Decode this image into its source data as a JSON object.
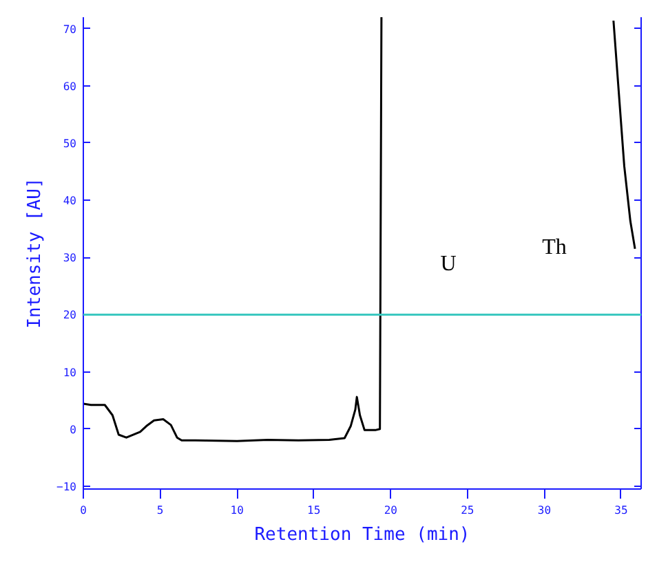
{
  "chart_data": {
    "type": "line",
    "xlabel": "Retention Time (min)",
    "ylabel": "Intensity [AU]",
    "x": [
      0,
      0.5,
      1.4,
      1.9,
      2.3,
      2.8,
      3.7,
      4.1,
      4.6,
      5.2,
      5.7,
      6.1,
      6.4,
      7.3,
      10,
      12,
      14,
      16,
      17.0,
      17.4,
      17.7,
      17.8,
      18.0,
      18.3,
      19.0,
      19.3,
      19.4,
      19.5,
      34.5,
      34.8,
      35.2,
      35.6,
      35.9
    ],
    "series": [
      {
        "color": "#000000",
        "values": [
          4.4,
          4.2,
          4.2,
          2.4,
          -1.0,
          -1.5,
          -0.5,
          0.5,
          1.5,
          1.7,
          0.7,
          -1.5,
          -2.0,
          -2.0,
          -2.1,
          -1.9,
          -2.0,
          -1.9,
          -1.6,
          0.5,
          3.4,
          5.6,
          2.4,
          -0.2,
          -0.2,
          0,
          72,
          null,
          71.4,
          60.5,
          46,
          36.3,
          31.5
        ]
      }
    ],
    "xlim": [
      0,
      36.3
    ],
    "ylim": [
      -10.5,
      72
    ],
    "xticks": [
      0,
      5,
      10,
      15,
      20,
      25,
      30,
      35
    ],
    "yticks": [
      -10,
      0,
      10,
      20,
      30,
      40,
      50,
      60,
      70
    ],
    "ref_lines": [
      {
        "axis": "y",
        "value": 20,
        "color": "#3cc8c0"
      }
    ],
    "annotations": [
      "U",
      "Th"
    ],
    "grid": false,
    "marker": "none",
    "line_style": "solid"
  }
}
